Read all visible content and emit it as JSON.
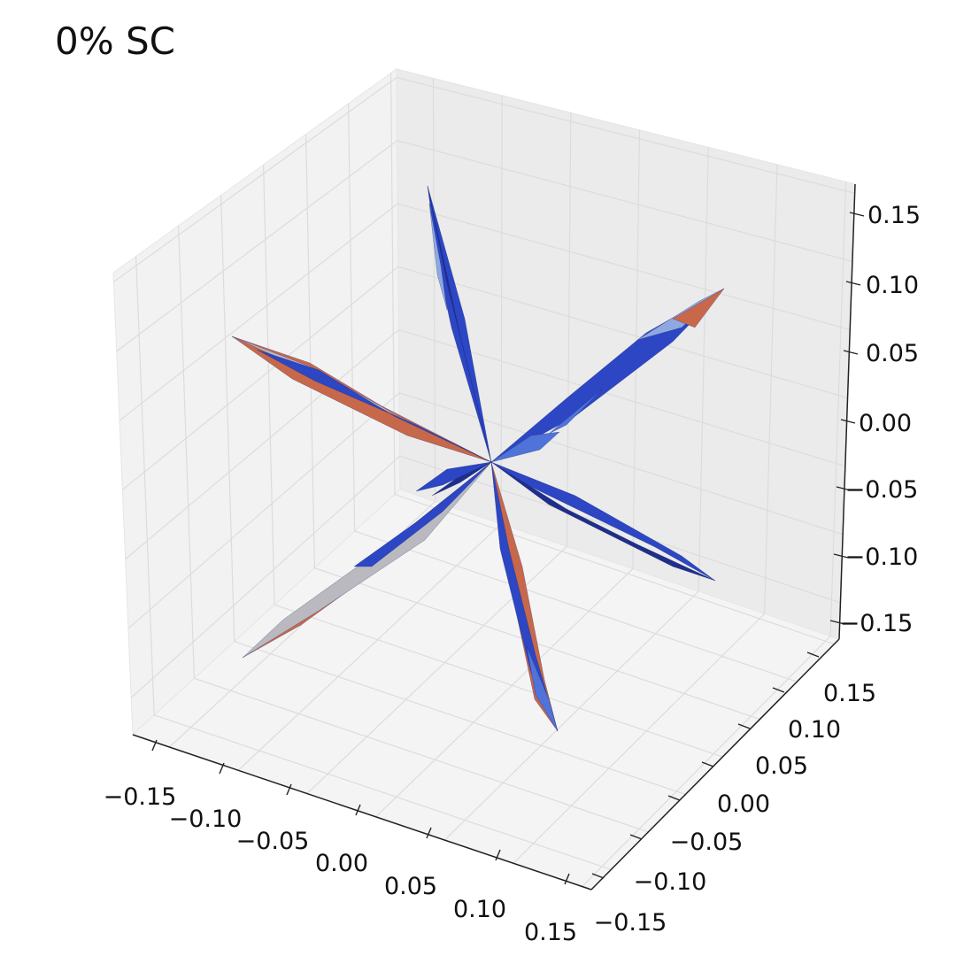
{
  "title": "0% SC",
  "chart_data": {
    "type": "3d-surface",
    "title": "0% SC",
    "xlabel": "",
    "ylabel": "",
    "zlabel": "",
    "xlim": [
      -0.17,
      0.17
    ],
    "ylim": [
      -0.17,
      0.17
    ],
    "zlim": [
      -0.17,
      0.17
    ],
    "grid": true,
    "x_ticks": [
      "−0.15",
      "−0.10",
      "−0.05",
      "0.00",
      "0.05",
      "0.10",
      "0.15"
    ],
    "y_ticks": [
      "−0.15",
      "−0.10",
      "−0.05",
      "0.00",
      "0.05",
      "0.10",
      "0.15"
    ],
    "z_ticks": [
      "−0.15",
      "−0.10",
      "−0.05",
      "0.00",
      "0.05",
      "0.10",
      "0.15"
    ],
    "surface": {
      "description": "six-lobed spike surface through the origin",
      "lobes": [
        {
          "name": "lobe-up",
          "tip": [
            -0.02,
            -0.02,
            0.16
          ]
        },
        {
          "name": "lobe-down",
          "tip": [
            0.02,
            0.02,
            -0.16
          ]
        },
        {
          "name": "lobe-upper-left",
          "tip": [
            -0.16,
            0.02,
            0.04
          ]
        },
        {
          "name": "lobe-lower-right",
          "tip": [
            0.16,
            -0.02,
            -0.04
          ]
        },
        {
          "name": "lobe-upper-right",
          "tip": [
            0.02,
            0.16,
            0.06
          ]
        },
        {
          "name": "lobe-lower-left",
          "tip": [
            -0.02,
            -0.16,
            -0.06
          ]
        }
      ],
      "colormap_colors": [
        "#1f2e8a",
        "#2c46c4",
        "#4f73d8",
        "#8fa9e0",
        "#b9b9bf",
        "#c8684a"
      ]
    }
  }
}
